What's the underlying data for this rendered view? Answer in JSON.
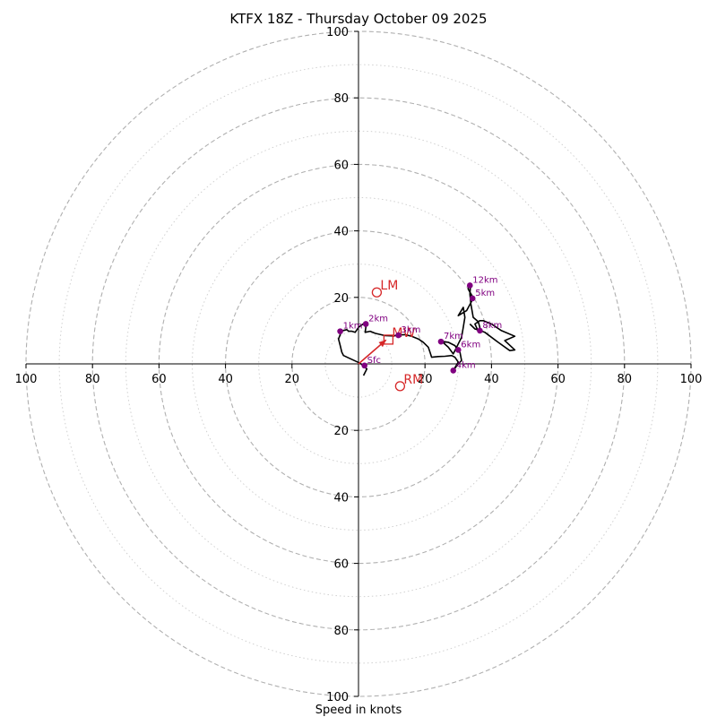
{
  "chart_data": {
    "type": "hodograph",
    "title": "KTFX 18Z - Thursday October 09 2025",
    "xlabel": "Speed in knots",
    "units": "knots",
    "range": [
      -100,
      100
    ],
    "major_rings": [
      20,
      40,
      60,
      80,
      100
    ],
    "minor_rings": [
      10,
      30,
      50,
      70,
      90
    ],
    "tick_labels": {
      "x_left": [
        "100",
        "80",
        "60",
        "40",
        "20"
      ],
      "x_right": [
        "20",
        "40",
        "60",
        "80",
        "100"
      ],
      "y_up": [
        "20",
        "40",
        "60",
        "80",
        "100"
      ],
      "y_down": [
        "20",
        "40",
        "60",
        "80",
        "100"
      ]
    },
    "colors": {
      "trace": "#000000",
      "height": "#800080",
      "motion": "#d62728",
      "grid": "#b0b0b0"
    },
    "trace": [
      [
        1.5,
        -3.5
      ],
      [
        2.5,
        -1.5
      ],
      [
        0.5,
        0.2
      ],
      [
        -3,
        1.8
      ],
      [
        -4.5,
        2.5
      ],
      [
        -5,
        3.5
      ],
      [
        -5.5,
        5.5
      ],
      [
        -6,
        7.5
      ],
      [
        -5.5,
        8.8
      ],
      [
        -5.5,
        9.8
      ],
      [
        -3.5,
        10.3
      ],
      [
        -3,
        9.8
      ],
      [
        -2,
        9.8
      ],
      [
        -1,
        9.5
      ],
      [
        0,
        11
      ],
      [
        1.8,
        12.3
      ],
      [
        2.2,
        11
      ],
      [
        2,
        9.5
      ],
      [
        3.5,
        9.8
      ],
      [
        5,
        9.2
      ],
      [
        8,
        8.5
      ],
      [
        10.5,
        8.4
      ],
      [
        12,
        8.7
      ],
      [
        14,
        8.8
      ],
      [
        16,
        8.3
      ],
      [
        18,
        7.5
      ],
      [
        19.5,
        6.5
      ],
      [
        21,
        5
      ],
      [
        21.5,
        3.5
      ],
      [
        22,
        2
      ],
      [
        24,
        2.2
      ],
      [
        26,
        2.3
      ],
      [
        28,
        2.5
      ],
      [
        29,
        2
      ],
      [
        30,
        0.5
      ],
      [
        28.5,
        -2
      ],
      [
        30,
        0
      ],
      [
        31,
        1
      ],
      [
        30.5,
        3.5
      ],
      [
        29.8,
        4.2
      ],
      [
        29,
        5.5
      ],
      [
        27,
        6.5
      ],
      [
        25,
        6.8
      ],
      [
        27,
        5
      ],
      [
        28.5,
        3
      ],
      [
        29,
        4
      ],
      [
        30,
        6
      ],
      [
        31,
        8
      ],
      [
        31.5,
        11
      ],
      [
        32,
        14
      ],
      [
        31.5,
        17
      ],
      [
        30,
        14.5
      ],
      [
        32.5,
        16
      ],
      [
        34.5,
        19.7
      ],
      [
        33,
        22.5
      ],
      [
        33.2,
        24
      ],
      [
        33.7,
        23.6
      ],
      [
        33.5,
        21
      ],
      [
        33.8,
        18
      ],
      [
        34.5,
        14
      ],
      [
        36,
        12.7
      ],
      [
        36.5,
        11
      ],
      [
        36,
        9.8
      ],
      [
        35,
        12
      ],
      [
        36.5,
        13
      ],
      [
        37.5,
        13
      ],
      [
        40,
        12
      ],
      [
        43,
        10
      ],
      [
        47,
        8.3
      ],
      [
        44,
        7
      ],
      [
        47,
        4.2
      ],
      [
        45.5,
        4
      ],
      [
        42,
        6.5
      ],
      [
        38,
        9.5
      ],
      [
        35,
        10.5
      ],
      [
        33.5,
        12
      ]
    ],
    "height_points": [
      {
        "label": "Sfc",
        "u": 1.8,
        "v": -0.5
      },
      {
        "label": "1km",
        "u": -5.5,
        "v": 9.8
      },
      {
        "label": "2km",
        "u": 2.2,
        "v": 12
      },
      {
        "label": "3km",
        "u": 12,
        "v": 8.6
      },
      {
        "label": "7km",
        "u": 24.8,
        "v": 6.7
      },
      {
        "label": "6km",
        "u": 30,
        "v": 4.2
      },
      {
        "label": "4km",
        "u": 28.5,
        "v": -2
      },
      {
        "label": "8km",
        "u": 36.5,
        "v": 10
      },
      {
        "label": "5km",
        "u": 34.3,
        "v": 19.7
      },
      {
        "label": "12km",
        "u": 33.5,
        "v": 23.6
      }
    ],
    "storm_motions": [
      {
        "label": "LM",
        "u": 5.5,
        "v": 21.5,
        "marker": "circle"
      },
      {
        "label": "RM",
        "u": 12.5,
        "v": -6.7,
        "marker": "circle"
      },
      {
        "label": "MW",
        "u": 9,
        "v": 7.3,
        "marker": "square"
      }
    ],
    "shear_vector": {
      "from": [
        0,
        0
      ],
      "to": [
        8.3,
        7.2
      ]
    }
  }
}
